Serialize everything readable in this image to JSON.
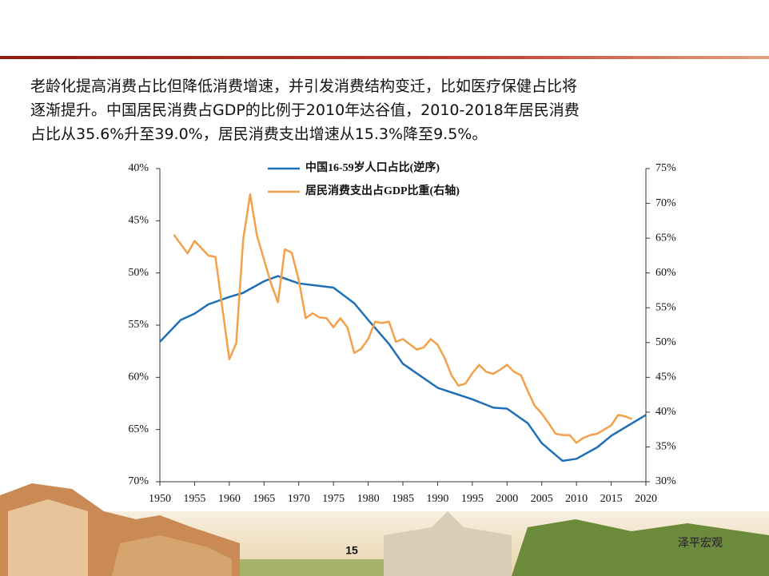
{
  "header_text": {
    "lines": [
      "老龄化提高消费占比但降低消费增速，并引发消费结构变迁，比如医疗保健占比将",
      "逐渐提升。中国居民消费占GDP的比例于2010年达谷值，2010-2018年居民消费",
      "占比从35.6%升至39.0%，居民消费支出增速从15.3%降至9.5%。"
    ]
  },
  "chart_data": {
    "type": "line",
    "xlim": [
      1950,
      2020
    ],
    "xticks": [
      1950,
      1955,
      1960,
      1965,
      1970,
      1975,
      1980,
      1985,
      1990,
      1995,
      2000,
      2005,
      2010,
      2015,
      2020
    ],
    "ylim": [
      40,
      70
    ],
    "y_inverted": true,
    "yticks": [
      {
        "value": 40,
        "label": "40%"
      },
      {
        "value": 45,
        "label": "45%"
      },
      {
        "value": 50,
        "label": "50%"
      },
      {
        "value": 55,
        "label": "55%"
      },
      {
        "value": 60,
        "label": "60%"
      },
      {
        "value": 65,
        "label": "65%"
      },
      {
        "value": 70,
        "label": "70%"
      }
    ],
    "y2lim": [
      30,
      75
    ],
    "y2ticks": [
      {
        "value": 30,
        "label": "30%"
      },
      {
        "value": 35,
        "label": "35%"
      },
      {
        "value": 40,
        "label": "40%"
      },
      {
        "value": 45,
        "label": "45%"
      },
      {
        "value": 50,
        "label": "50%"
      },
      {
        "value": 55,
        "label": "55%"
      },
      {
        "value": 60,
        "label": "60%"
      },
      {
        "value": 65,
        "label": "65%"
      },
      {
        "value": 70,
        "label": "70%"
      },
      {
        "value": 75,
        "label": "75%"
      }
    ],
    "series": [
      {
        "name": "中国16-59岁人口占比(逆序)",
        "color": "#1f6fb7",
        "x": [
          1950,
          1953,
          1955,
          1957,
          1960,
          1962,
          1965,
          1967,
          1970,
          1975,
          1978,
          1980,
          1983,
          1985,
          1990,
          1995,
          1998,
          2000,
          2003,
          2005,
          2008,
          2010,
          2013,
          2015,
          2018,
          2020
        ],
        "values": [
          56.6,
          54.5,
          53.9,
          53,
          52.3,
          51.9,
          50.8,
          50.3,
          51,
          51.4,
          52.9,
          54.5,
          56.8,
          58.7,
          61,
          62.1,
          62.9,
          63,
          64.4,
          66.3,
          68,
          67.8,
          66.7,
          65.6,
          64.4,
          63.6
        ]
      },
      {
        "name": "居民消费支出占GDP比重(右轴)",
        "color": "#f4a04a",
        "axis": "y2",
        "x": [
          1952,
          1954,
          1955,
          1957,
          1958,
          1960,
          1961,
          1962,
          1963,
          1964,
          1966,
          1967,
          1968,
          1969,
          1970,
          1971,
          1972,
          1973,
          1974,
          1975,
          1976,
          1977,
          1978,
          1979,
          1980,
          1981,
          1982,
          1983,
          1984,
          1985,
          1987,
          1988,
          1989,
          1990,
          1991,
          1992,
          1993,
          1994,
          1995,
          1996,
          1997,
          1998,
          1999,
          2000,
          2001,
          2002,
          2003,
          2004,
          2005,
          2006,
          2007,
          2008,
          2009,
          2010,
          2011,
          2012,
          2013,
          2014,
          2015,
          2016,
          2017,
          2018
        ],
        "values": [
          65.5,
          62.8,
          64.6,
          62.5,
          62.3,
          47.6,
          49.9,
          64.8,
          71.3,
          65.3,
          58.5,
          55.8,
          63.4,
          62.9,
          59,
          53.5,
          54.2,
          53.6,
          53.5,
          52.2,
          53.5,
          52.2,
          48.5,
          49.1,
          50.5,
          53,
          52.8,
          53,
          50.1,
          50.5,
          49,
          49.3,
          50.5,
          49.7,
          47.8,
          45.3,
          43.8,
          44.1,
          45.6,
          46.8,
          45.8,
          45.5,
          46.1,
          46.8,
          45.8,
          45.3,
          43,
          40.9,
          39.8,
          38.4,
          36.9,
          36.7,
          36.7,
          35.6,
          36.3,
          36.7,
          36.9,
          37.5,
          38.1,
          39.6,
          39.4,
          39.0
        ]
      }
    ]
  },
  "footer": {
    "page_number": "15",
    "watermark": "泽平宏观"
  }
}
